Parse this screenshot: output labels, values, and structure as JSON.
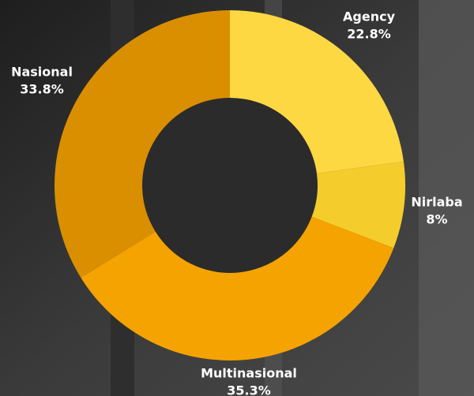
{
  "chart_data": {
    "type": "donut",
    "categories": [
      "Agency",
      "Nirlaba",
      "Multinasional",
      "Nasional"
    ],
    "values": [
      22.8,
      8,
      35.3,
      33.8
    ],
    "value_labels": [
      "22.8%",
      "8%",
      "35.3%",
      "33.8%"
    ],
    "colors": [
      "#fdd843",
      "#f4cc2c",
      "#f5a300",
      "#d98f00"
    ]
  }
}
